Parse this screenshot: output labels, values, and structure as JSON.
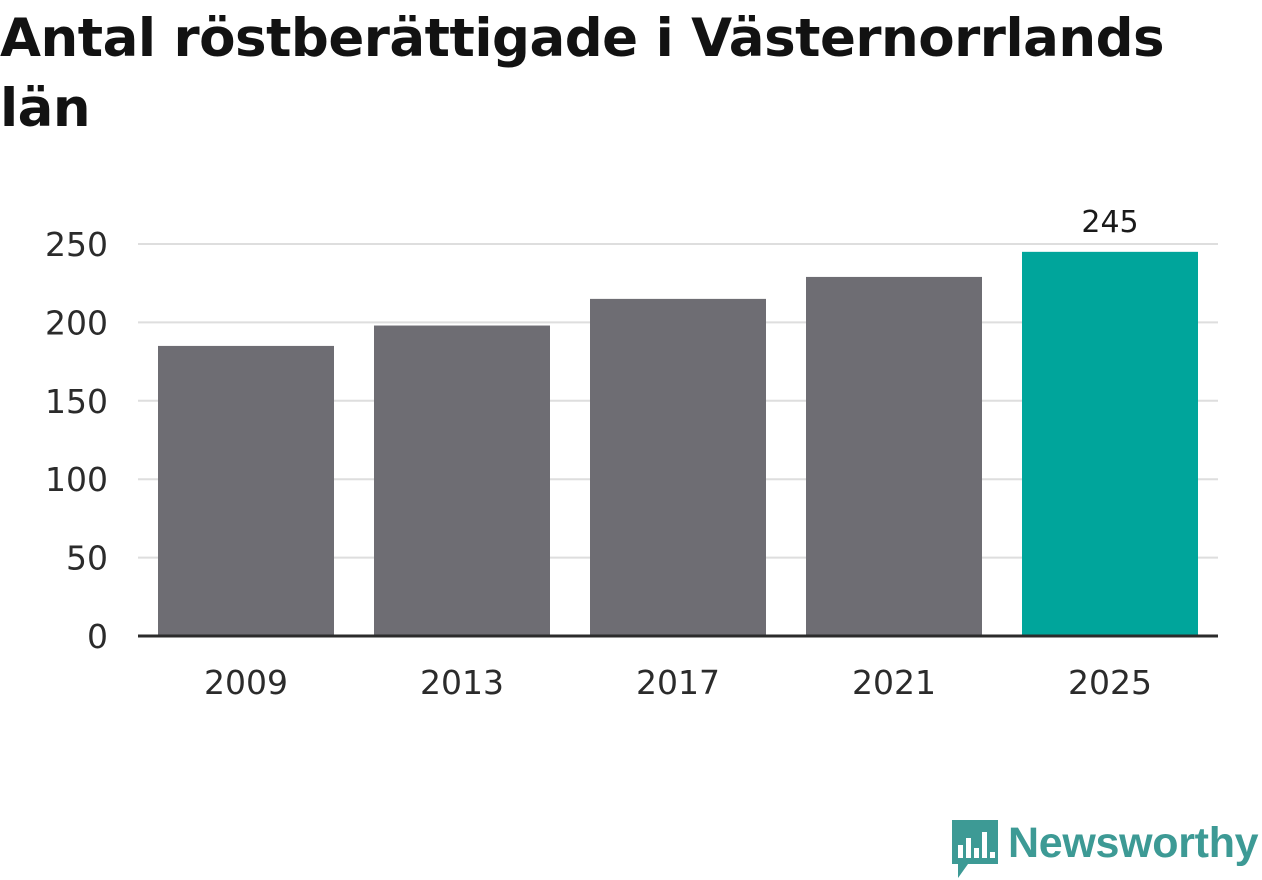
{
  "colors": {
    "bar_default": "#6e6d73",
    "bar_highlight": "#00a59b",
    "gridline": "#dedede",
    "baseline": "#2b2b2b",
    "text": "#2b2b2b",
    "brand": "#3d9a95"
  },
  "brand": {
    "name": "Newsworthy",
    "icon": "newsworthy-logo-icon"
  },
  "chart_data": {
    "type": "bar",
    "title": "Antal röstberättigade i Västernorrlands län",
    "xlabel": "",
    "ylabel": "",
    "categories": [
      "2009",
      "2013",
      "2017",
      "2021",
      "2025"
    ],
    "values": [
      185,
      198,
      215,
      229,
      245
    ],
    "highlight_index": 4,
    "data_labels": [
      null,
      null,
      null,
      null,
      "245"
    ],
    "ylim": [
      0,
      250
    ],
    "yticks": [
      0,
      50,
      100,
      150,
      200,
      250
    ],
    "grid": true,
    "legend": "none"
  }
}
